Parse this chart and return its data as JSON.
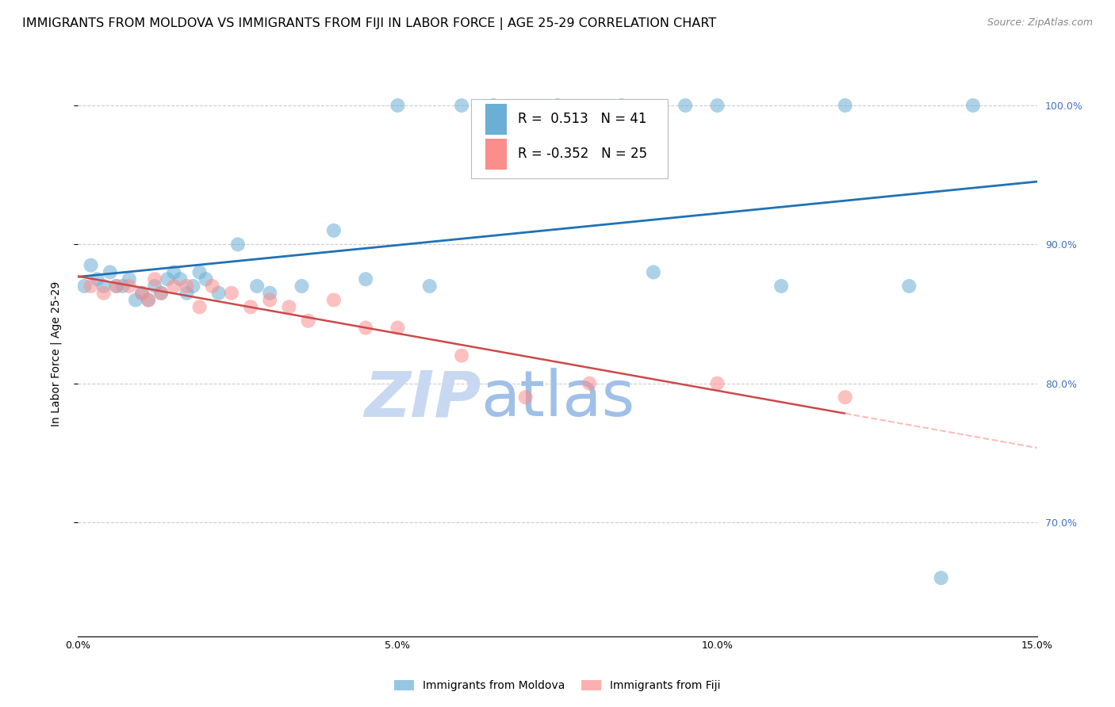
{
  "title": "IMMIGRANTS FROM MOLDOVA VS IMMIGRANTS FROM FIJI IN LABOR FORCE | AGE 25-29 CORRELATION CHART",
  "source": "Source: ZipAtlas.com",
  "ylabel": "In Labor Force | Age 25-29",
  "xlim": [
    0.0,
    0.15
  ],
  "ylim": [
    0.618,
    1.025
  ],
  "yticks": [
    0.7,
    0.8,
    0.9,
    1.0
  ],
  "ytick_labels": [
    "70.0%",
    "80.0%",
    "90.0%",
    "100.0%"
  ],
  "xticks": [
    0.0,
    0.05,
    0.1,
    0.15
  ],
  "xtick_labels": [
    "0.0%",
    "5.0%",
    "10.0%",
    "15.0%"
  ],
  "moldova_x": [
    0.001,
    0.002,
    0.003,
    0.004,
    0.005,
    0.006,
    0.007,
    0.008,
    0.009,
    0.01,
    0.011,
    0.012,
    0.013,
    0.014,
    0.015,
    0.016,
    0.017,
    0.018,
    0.019,
    0.02,
    0.022,
    0.025,
    0.028,
    0.03,
    0.035,
    0.04,
    0.045,
    0.05,
    0.055,
    0.06,
    0.065,
    0.075,
    0.085,
    0.09,
    0.095,
    0.1,
    0.11,
    0.12,
    0.13,
    0.135,
    0.14
  ],
  "moldova_y": [
    0.87,
    0.885,
    0.875,
    0.87,
    0.88,
    0.87,
    0.87,
    0.875,
    0.86,
    0.865,
    0.86,
    0.87,
    0.865,
    0.875,
    0.88,
    0.875,
    0.865,
    0.87,
    0.88,
    0.875,
    0.865,
    0.9,
    0.87,
    0.865,
    0.87,
    0.91,
    0.875,
    1.0,
    0.87,
    1.0,
    1.0,
    1.0,
    1.0,
    0.88,
    1.0,
    1.0,
    0.87,
    1.0,
    0.87,
    0.66,
    1.0
  ],
  "fiji_x": [
    0.002,
    0.004,
    0.006,
    0.008,
    0.01,
    0.011,
    0.012,
    0.013,
    0.015,
    0.017,
    0.019,
    0.021,
    0.024,
    0.027,
    0.03,
    0.033,
    0.036,
    0.04,
    0.045,
    0.05,
    0.06,
    0.07,
    0.08,
    0.1,
    0.12
  ],
  "fiji_y": [
    0.87,
    0.865,
    0.87,
    0.87,
    0.865,
    0.86,
    0.875,
    0.865,
    0.87,
    0.87,
    0.855,
    0.87,
    0.865,
    0.855,
    0.86,
    0.855,
    0.845,
    0.86,
    0.84,
    0.84,
    0.82,
    0.79,
    0.8,
    0.8,
    0.79
  ],
  "moldova_R": 0.513,
  "moldova_N": 41,
  "fiji_R": -0.352,
  "fiji_N": 25,
  "moldova_color": "#6BAED6",
  "fiji_color": "#FC8D8D",
  "moldova_line_color": "#2171B5",
  "fiji_line_color": "#CB4A4A",
  "fiji_dashed_color": "#FCBCBC",
  "background_color": "#FFFFFF",
  "grid_color": "#CCCCCC",
  "watermark_zip": "ZIP",
  "watermark_atlas": "atlas",
  "watermark_color_zip": "#C8D8F0",
  "watermark_color_atlas": "#A0C0E8",
  "title_fontsize": 11.5,
  "axis_label_fontsize": 10,
  "tick_fontsize": 9,
  "legend_fontsize": 12,
  "source_fontsize": 9,
  "right_tick_color": "#4472C4"
}
